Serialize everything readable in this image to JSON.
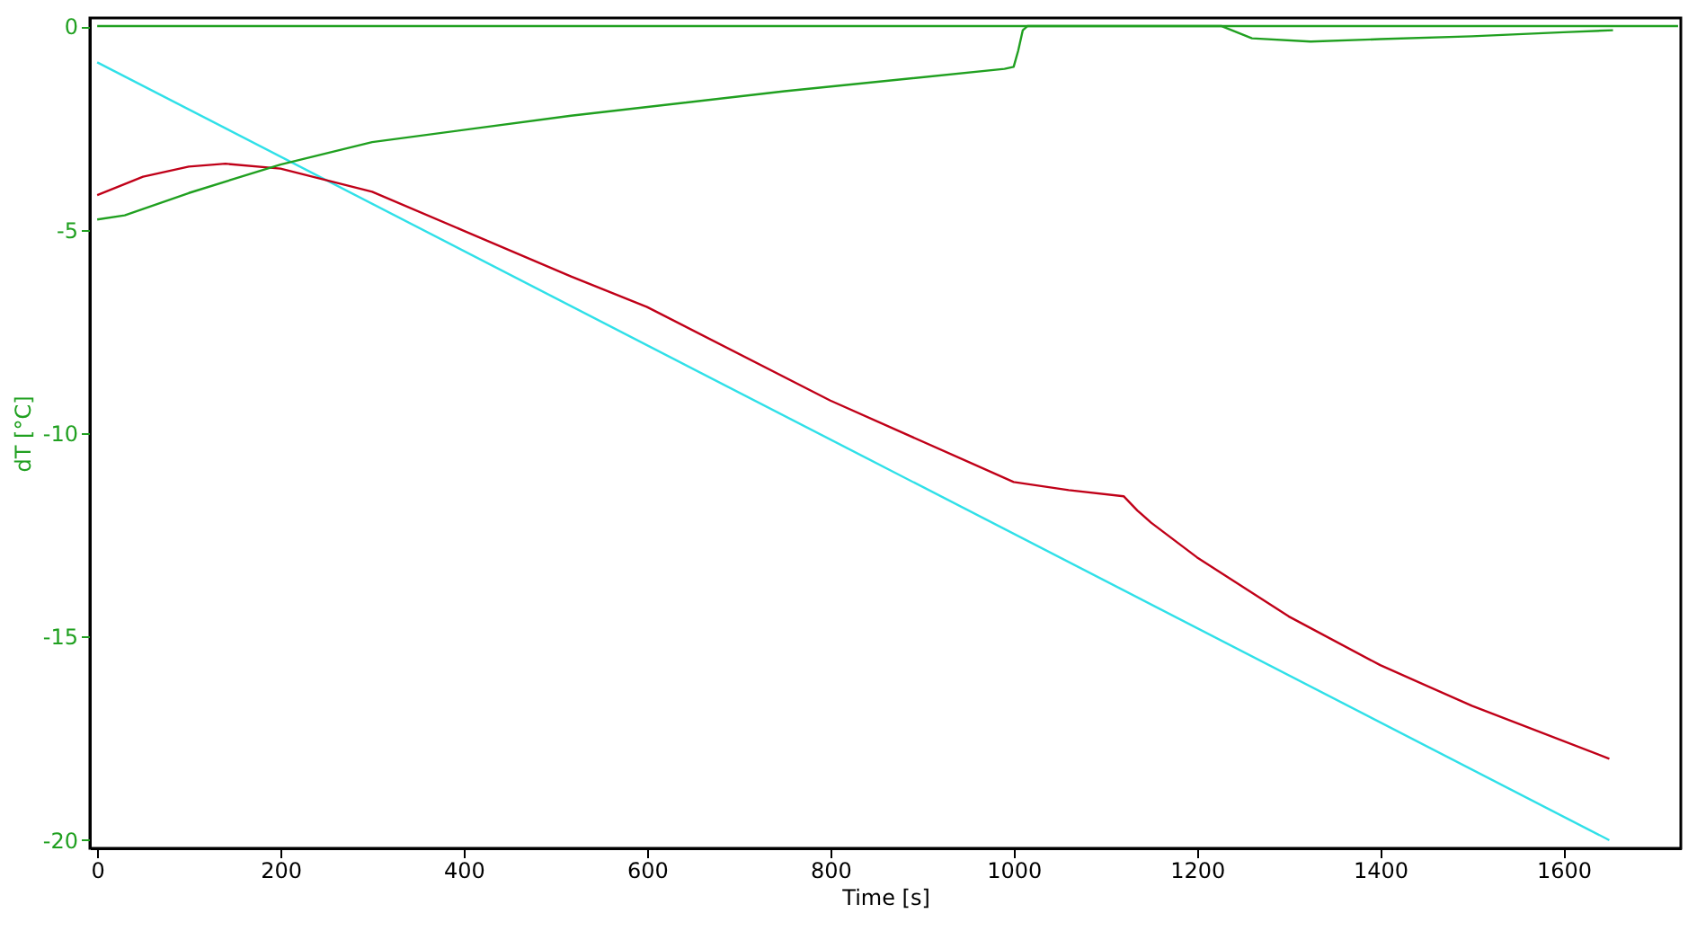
{
  "chart_data": {
    "type": "line",
    "xlabel": "Time [s]",
    "ylabel": "dT [°C]",
    "xlim": [
      -8,
      1728
    ],
    "ylim": [
      -20.2,
      0.2
    ],
    "xticks": [
      0,
      200,
      400,
      600,
      800,
      1000,
      1200,
      1400,
      1600
    ],
    "yticks": [
      0,
      -5,
      -10,
      -15,
      -20
    ],
    "grid": false,
    "marker": "none",
    "line_style": "solid",
    "series": [
      {
        "color": "#20a020",
        "x": [
          0,
          1725
        ],
        "values": [
          0,
          0
        ]
      },
      {
        "color": "#30e0e8",
        "x": [
          0,
          1650
        ],
        "values": [
          -0.89,
          -20
        ]
      },
      {
        "color": "#c00018",
        "x": [
          0,
          50,
          100,
          140,
          200,
          300,
          517,
          600,
          800,
          1000,
          1060,
          1120,
          1135,
          1150,
          1200,
          1300,
          1400,
          1500,
          1650
        ],
        "values": [
          -4.15,
          -3.7,
          -3.45,
          -3.38,
          -3.5,
          -4.07,
          -6.15,
          -6.9,
          -9.2,
          -11.2,
          -11.4,
          -11.55,
          -11.9,
          -12.2,
          -13.05,
          -14.5,
          -15.7,
          -16.7,
          -18.0
        ]
      },
      {
        "color": "#20a020",
        "x": [
          0,
          30,
          100,
          200,
          300,
          517,
          750,
          990,
          1000,
          1005,
          1010,
          1015,
          1227,
          1260,
          1324,
          1400,
          1500,
          1600,
          1654
        ],
        "values": [
          -4.75,
          -4.65,
          -4.1,
          -3.4,
          -2.85,
          -2.2,
          -1.6,
          -1.05,
          -1.0,
          -0.6,
          -0.1,
          0,
          0,
          -0.3,
          -0.38,
          -0.32,
          -0.25,
          -0.15,
          -0.1
        ]
      }
    ]
  }
}
